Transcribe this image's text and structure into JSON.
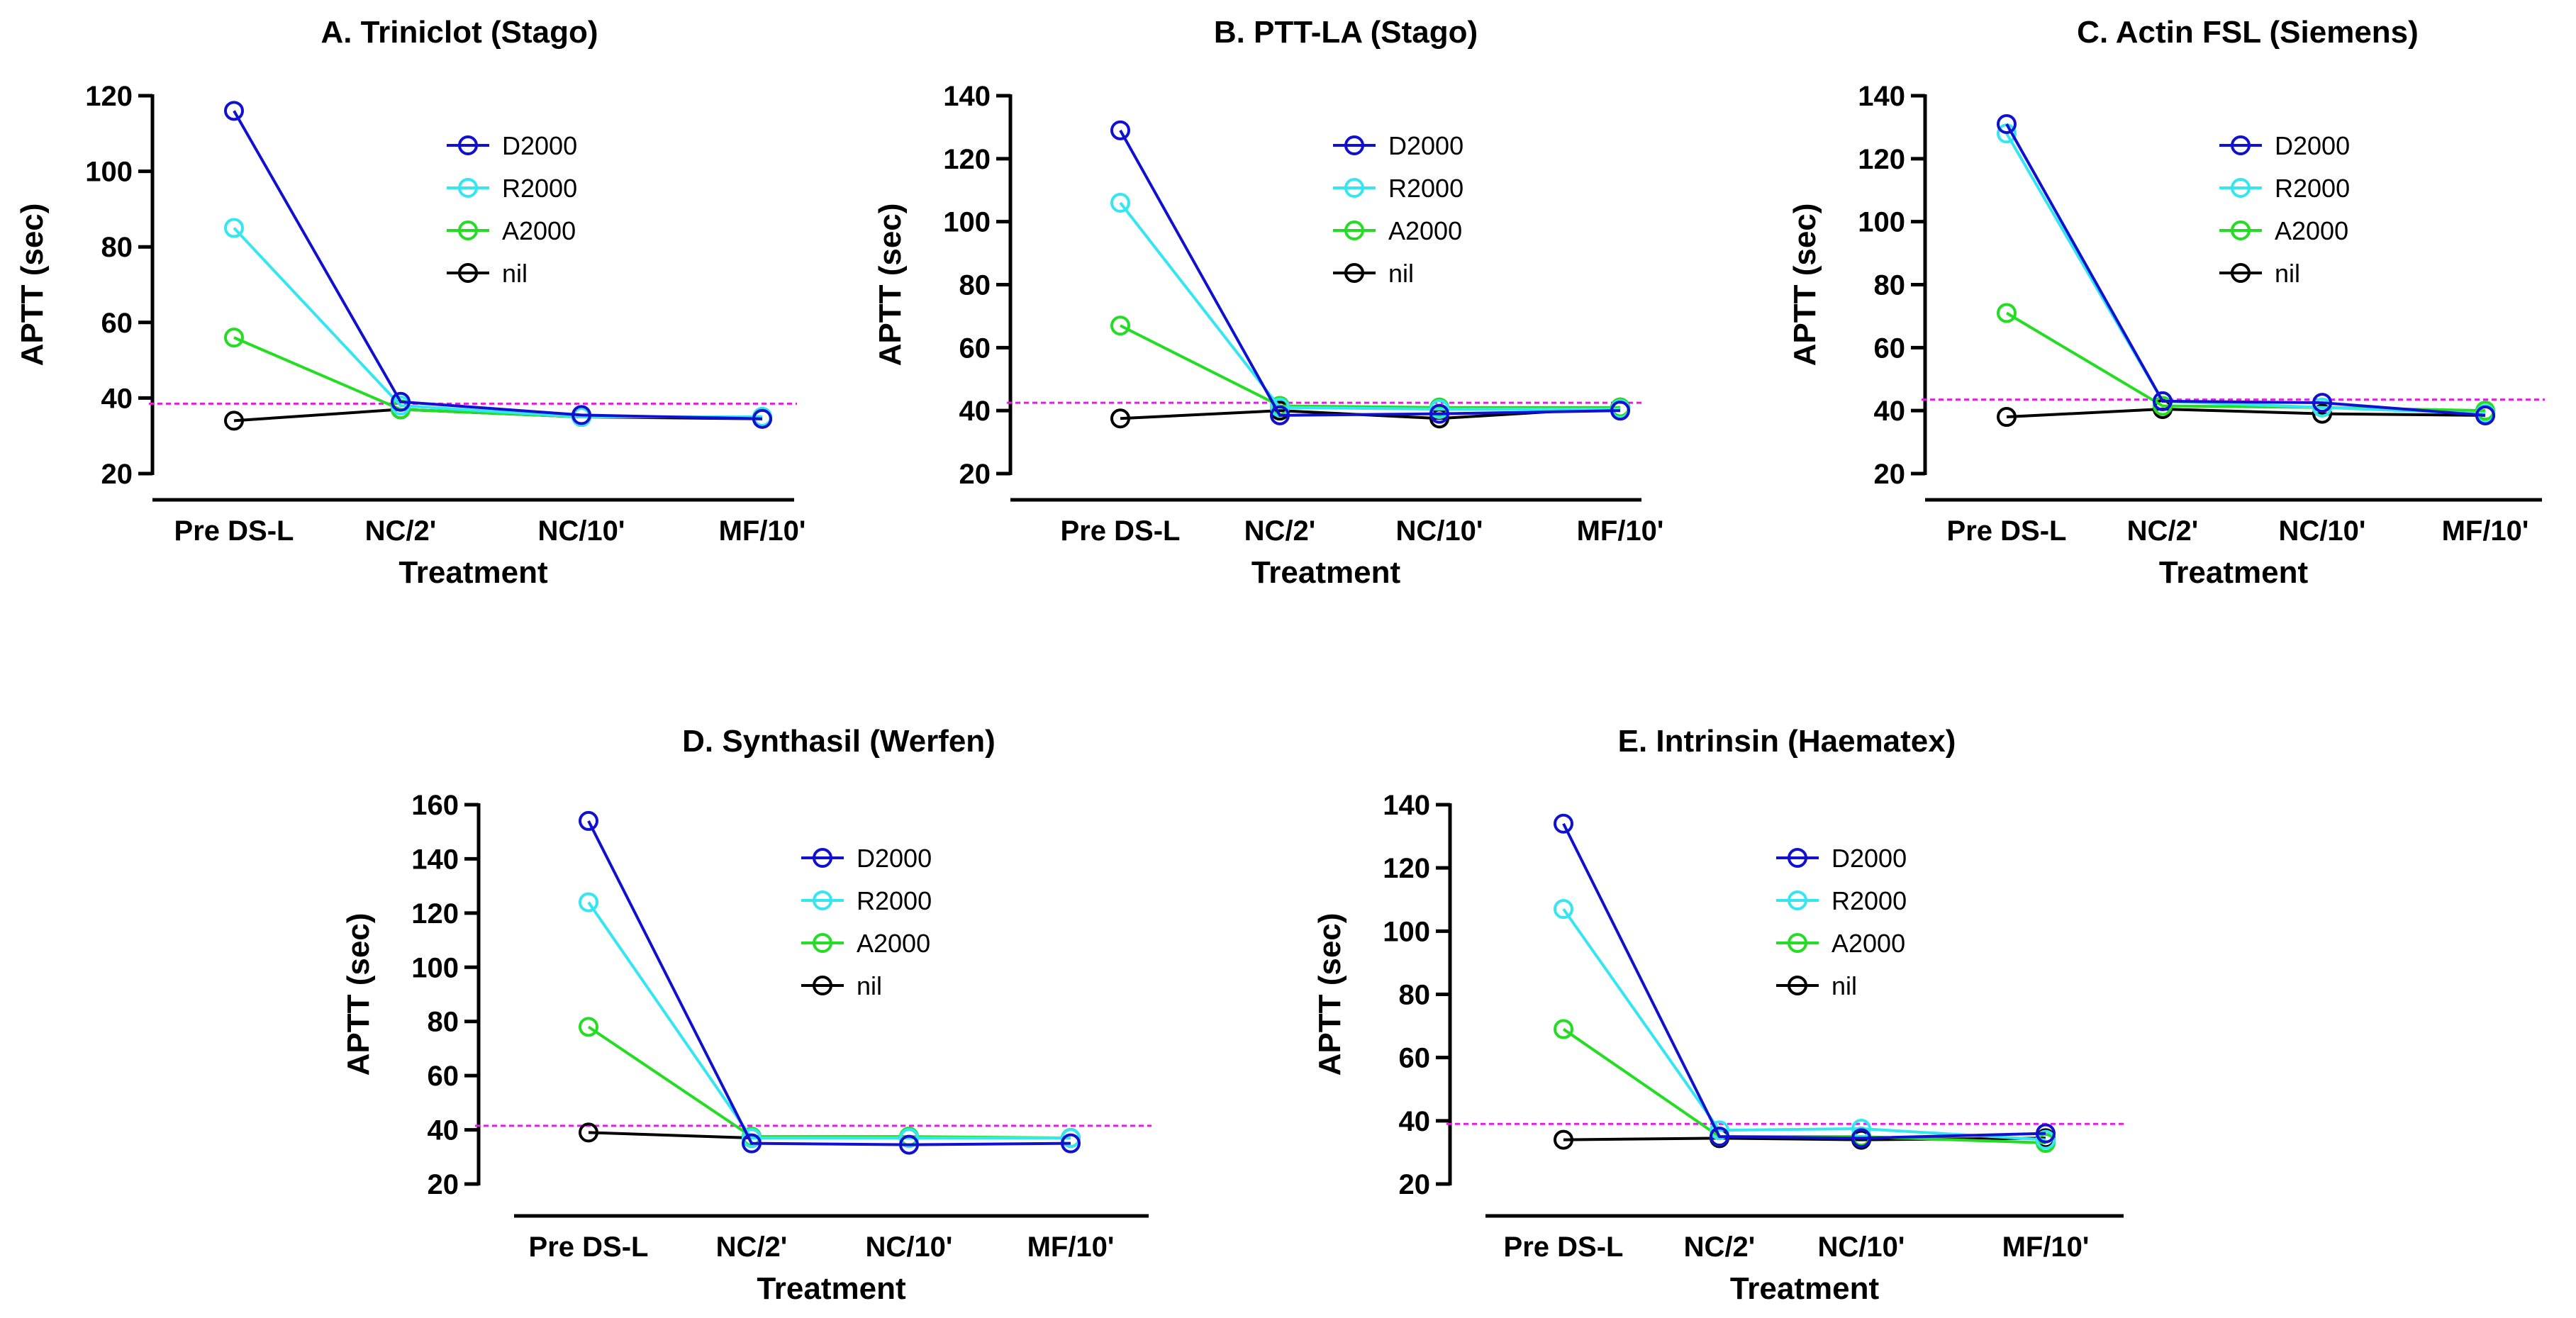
{
  "chart_data": [
    {
      "type": "line",
      "title": "A. Triniclot (Stago)",
      "xlabel": "Treatment",
      "ylabel": "APTT (sec)",
      "categories": [
        "Pre DS-L",
        "NC/2'",
        "NC/10'",
        "MF/10'"
      ],
      "ylim": [
        20,
        120
      ],
      "yticks": [
        20,
        40,
        60,
        80,
        100,
        120
      ],
      "reference_line": 38.5,
      "series": [
        {
          "name": "D2000",
          "color": "#1010d0",
          "values": [
            116,
            39,
            35.5,
            34.5
          ]
        },
        {
          "name": "R2000",
          "color": "#33e6f2",
          "values": [
            85,
            38,
            35,
            35
          ]
        },
        {
          "name": "A2000",
          "color": "#22dd22",
          "values": [
            56,
            37,
            35,
            35
          ]
        },
        {
          "name": "nil",
          "color": "#000000",
          "values": [
            34,
            37,
            35,
            34.5
          ]
        }
      ]
    },
    {
      "type": "line",
      "title": "B. PTT-LA (Stago)",
      "xlabel": "Treatment",
      "ylabel": "APTT (sec)",
      "categories": [
        "Pre DS-L",
        "NC/2'",
        "NC/10'",
        "MF/10'"
      ],
      "ylim": [
        20,
        140
      ],
      "yticks": [
        20,
        40,
        60,
        80,
        100,
        120,
        140
      ],
      "reference_line": 42.5,
      "series": [
        {
          "name": "D2000",
          "color": "#1010d0",
          "values": [
            129,
            38.5,
            39,
            40
          ]
        },
        {
          "name": "R2000",
          "color": "#33e6f2",
          "values": [
            106,
            41,
            40.5,
            40.5
          ]
        },
        {
          "name": "A2000",
          "color": "#22dd22",
          "values": [
            67,
            41.5,
            41,
            41
          ]
        },
        {
          "name": "nil",
          "color": "#000000",
          "values": [
            37.5,
            40,
            37.5,
            41
          ]
        }
      ]
    },
    {
      "type": "line",
      "title": "C. Actin FSL (Siemens)",
      "xlabel": "Treatment",
      "ylabel": "APTT (sec)",
      "categories": [
        "Pre DS-L",
        "NC/2'",
        "NC/10'",
        "MF/10'"
      ],
      "ylim": [
        20,
        140
      ],
      "yticks": [
        20,
        40,
        60,
        80,
        100,
        120,
        140
      ],
      "reference_line": 43.5,
      "series": [
        {
          "name": "D2000",
          "color": "#1010d0",
          "values": [
            131,
            43,
            42.5,
            38.5
          ]
        },
        {
          "name": "R2000",
          "color": "#33e6f2",
          "values": [
            128,
            43,
            41,
            39
          ]
        },
        {
          "name": "A2000",
          "color": "#22dd22",
          "values": [
            71,
            41.5,
            41,
            40
          ]
        },
        {
          "name": "nil",
          "color": "#000000",
          "values": [
            38,
            40.5,
            39,
            38.5
          ]
        }
      ]
    },
    {
      "type": "line",
      "title": "D. Synthasil (Werfen)",
      "xlabel": "Treatment",
      "ylabel": "APTT (sec)",
      "categories": [
        "Pre DS-L",
        "NC/2'",
        "NC/10'",
        "MF/10'"
      ],
      "ylim": [
        20,
        160
      ],
      "yticks": [
        20,
        40,
        60,
        80,
        100,
        120,
        140,
        160
      ],
      "reference_line": 41.5,
      "series": [
        {
          "name": "D2000",
          "color": "#1010d0",
          "values": [
            154,
            35,
            34.5,
            35
          ]
        },
        {
          "name": "R2000",
          "color": "#33e6f2",
          "values": [
            124,
            37,
            37,
            37
          ]
        },
        {
          "name": "A2000",
          "color": "#22dd22",
          "values": [
            78,
            37.5,
            37.5,
            37
          ]
        },
        {
          "name": "nil",
          "color": "#000000",
          "values": [
            39,
            37,
            37,
            37
          ]
        }
      ]
    },
    {
      "type": "line",
      "title": "E. Intrinsin (Haematex)",
      "xlabel": "Treatment",
      "ylabel": "APTT (sec)",
      "categories": [
        "Pre DS-L",
        "NC/2'",
        "NC/10'",
        "MF/10'"
      ],
      "ylim": [
        20,
        140
      ],
      "yticks": [
        20,
        40,
        60,
        80,
        100,
        120,
        140
      ],
      "reference_line": 39,
      "series": [
        {
          "name": "D2000",
          "color": "#1010d0",
          "values": [
            134,
            35,
            34.5,
            36
          ]
        },
        {
          "name": "R2000",
          "color": "#33e6f2",
          "values": [
            107,
            37,
            37.5,
            34
          ]
        },
        {
          "name": "A2000",
          "color": "#22dd22",
          "values": [
            69,
            35,
            35,
            33
          ]
        },
        {
          "name": "nil",
          "color": "#000000",
          "values": [
            34,
            34.5,
            34,
            34.5
          ]
        }
      ]
    }
  ],
  "colors": {
    "reference_line": "#e020e0",
    "axis": "#000000"
  }
}
